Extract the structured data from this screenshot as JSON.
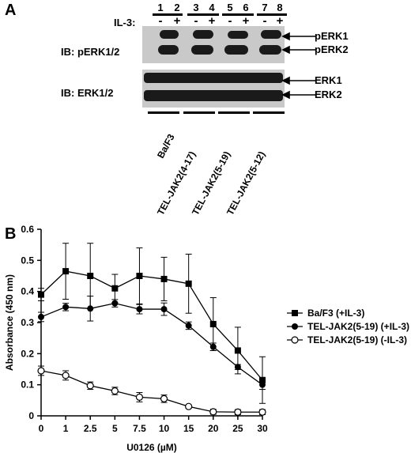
{
  "panel_a": {
    "letter": "A",
    "treatment_label": "IL-3:",
    "lanes": [
      "1",
      "2",
      "3",
      "4",
      "5",
      "6",
      "7",
      "8"
    ],
    "signs": [
      "-",
      "+",
      "-",
      "+",
      "-",
      "+",
      "-",
      "+"
    ],
    "blots": [
      {
        "ib_label": "IB:  pERK1/2",
        "bands": [
          "pERK1",
          "pERK2"
        ]
      },
      {
        "ib_label": "IB:  ERK1/2",
        "bands": [
          "ERK1",
          "ERK2"
        ]
      }
    ],
    "cell_lines": [
      "Ba/F3",
      "TEL-JAK2(4-17)",
      "TEL-JAK2(5-19)",
      "TEL-JAK2(5-12)"
    ]
  },
  "panel_b": {
    "letter": "B"
  },
  "chart_data": {
    "type": "line",
    "xlabel": "U0126 (µM)",
    "ylabel": "Absorbance (450 nm)",
    "x": [
      0,
      1,
      2.5,
      5,
      7.5,
      10,
      15,
      20,
      25,
      30
    ],
    "x_tick_labels": [
      "0",
      "1",
      "2.5",
      "5",
      "7.5",
      "10",
      "15",
      "20",
      "25",
      "30"
    ],
    "ylim": [
      0,
      0.6
    ],
    "y_ticks": [
      "0",
      "0.1",
      "0.2",
      "0.3",
      "0.4",
      "0.5",
      "0.6"
    ],
    "legend_position": "right",
    "series": [
      {
        "name": "Ba/F3 (+IL-3)",
        "marker": "filled-square",
        "values": [
          0.39,
          0.465,
          0.45,
          0.41,
          0.45,
          0.44,
          0.425,
          0.295,
          0.21,
          0.115
        ],
        "errors": [
          0.02,
          0.09,
          0.105,
          0.045,
          0.09,
          0.07,
          0.095,
          0.085,
          0.075,
          0.075
        ]
      },
      {
        "name": "TEL-JAK2(5-19) (+IL-3)",
        "marker": "filled-circle",
        "values": [
          0.318,
          0.35,
          0.345,
          0.362,
          0.343,
          0.343,
          0.29,
          0.222,
          0.157,
          0.1
        ],
        "errors": [
          0.015,
          0.012,
          0.04,
          0.012,
          0.015,
          0.02,
          0.012,
          0.012,
          0.008,
          0.015
        ]
      },
      {
        "name": "TEL-JAK2(5-19) (-IL-3)",
        "marker": "open-circle",
        "values": [
          0.145,
          0.13,
          0.097,
          0.08,
          0.06,
          0.055,
          0.03,
          0.013,
          0.012,
          0.012
        ],
        "errors": [
          0.015,
          0.015,
          0.012,
          0.012,
          0.015,
          0.012,
          0.005,
          0.008,
          0.008,
          0.008
        ]
      }
    ]
  }
}
